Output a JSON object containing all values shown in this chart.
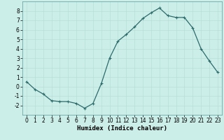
{
  "x": [
    0,
    1,
    2,
    3,
    4,
    5,
    6,
    7,
    8,
    9,
    10,
    11,
    12,
    13,
    14,
    15,
    16,
    17,
    18,
    19,
    20,
    21,
    22,
    23
  ],
  "y": [
    0.5,
    -0.3,
    -0.8,
    -1.5,
    -1.6,
    -1.6,
    -1.8,
    -2.3,
    -1.8,
    0.3,
    3.0,
    4.8,
    5.5,
    6.3,
    7.2,
    7.8,
    8.3,
    7.5,
    7.3,
    7.3,
    6.2,
    4.0,
    2.7,
    1.5
  ],
  "line_color": "#2e6b6b",
  "marker": "+",
  "marker_size": 3,
  "marker_lw": 0.8,
  "line_width": 0.9,
  "background_color": "#cceee8",
  "grid_color": "#b8ddd8",
  "xlabel": "Humidex (Indice chaleur)",
  "xlim": [
    -0.5,
    23.5
  ],
  "ylim": [
    -3,
    9
  ],
  "yticks": [
    -2,
    -1,
    0,
    1,
    2,
    3,
    4,
    5,
    6,
    7,
    8
  ],
  "xticks": [
    0,
    1,
    2,
    3,
    4,
    5,
    6,
    7,
    8,
    9,
    10,
    11,
    12,
    13,
    14,
    15,
    16,
    17,
    18,
    19,
    20,
    21,
    22,
    23
  ],
  "xlabel_fontsize": 6.5,
  "tick_fontsize": 5.5
}
